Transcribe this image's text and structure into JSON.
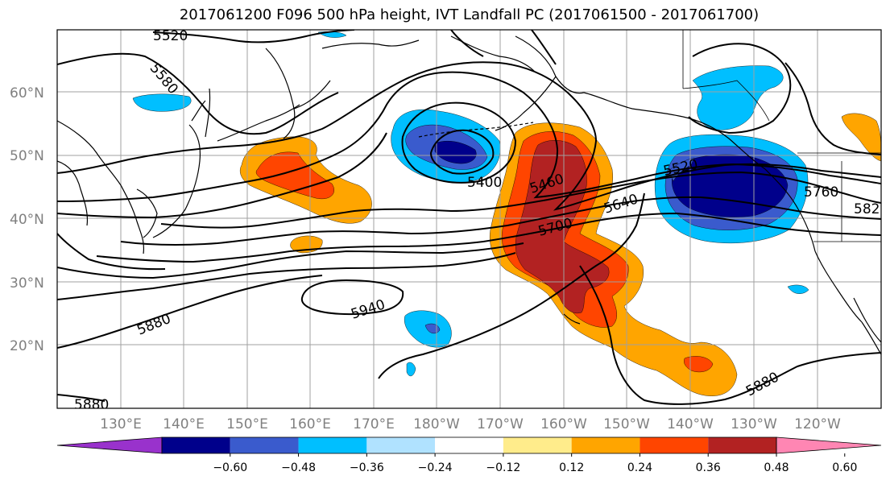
{
  "title": "2017061200 F096 500 hPa height, IVT Landfall PC (2017061500 - 2017061700)",
  "map": {
    "lat_labels": [
      "60°N",
      "50°N",
      "40°N",
      "30°N",
      "20°N"
    ],
    "lon_labels": [
      "130°E",
      "140°E",
      "150°E",
      "160°E",
      "170°E",
      "180°W",
      "170°W",
      "160°W",
      "150°W",
      "140°W",
      "130°W",
      "120°W"
    ],
    "contour_labels": [
      "5520",
      "5580",
      "5400",
      "5460",
      "5520",
      "5640",
      "5700",
      "5760",
      "582",
      "5940",
      "5880",
      "5880",
      "5880"
    ],
    "contour_color": "#000000"
  },
  "colorbar": {
    "colors": [
      "#9932cc",
      "#00008b",
      "#3a5bcd",
      "#00bfff",
      "#b0e2ff",
      "#ffffff",
      "#ffec8b",
      "#ffa500",
      "#ff4500",
      "#b22222",
      "#ff86b3"
    ],
    "ticks": [
      "−0.60",
      "−0.48",
      "−0.36",
      "−0.24",
      "−0.12",
      "0.12",
      "0.24",
      "0.36",
      "0.48",
      "0.60"
    ]
  }
}
